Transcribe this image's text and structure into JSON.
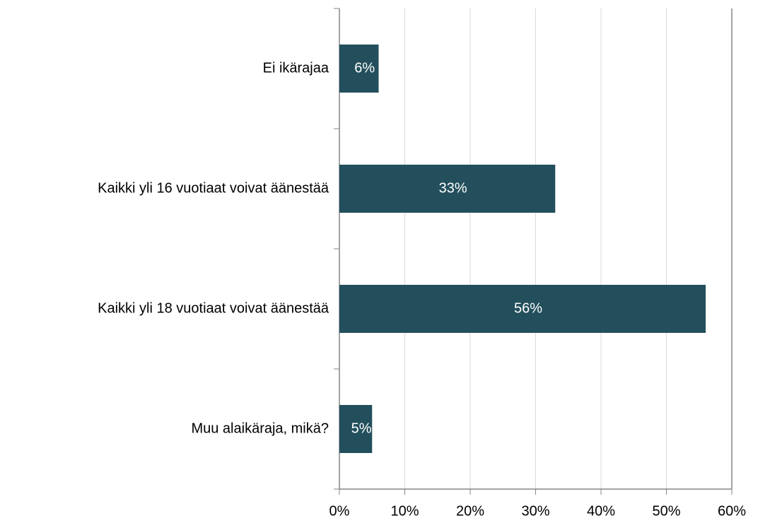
{
  "chart_data": {
    "type": "barh",
    "categories": [
      "Ei ikärajaa",
      "Kaikki yli 16 vuotiaat voivat äänestää",
      "Kaikki yli 18 vuotiaat voivat äänestää",
      "Muu alaikäraja, mikä?"
    ],
    "values": [
      6,
      33,
      56,
      5
    ],
    "value_labels": [
      "6%",
      "33%",
      "56%",
      "5%"
    ],
    "color": "#234f5c",
    "xlim": [
      0,
      60
    ],
    "xticks": [
      {
        "value": 0,
        "label": "0%"
      },
      {
        "value": 10,
        "label": "10%"
      },
      {
        "value": 20,
        "label": "20%"
      },
      {
        "value": 30,
        "label": "30%"
      },
      {
        "value": 40,
        "label": "40%"
      },
      {
        "value": 50,
        "label": "50%"
      },
      {
        "value": 60,
        "label": "60%"
      }
    ],
    "grid": true
  }
}
